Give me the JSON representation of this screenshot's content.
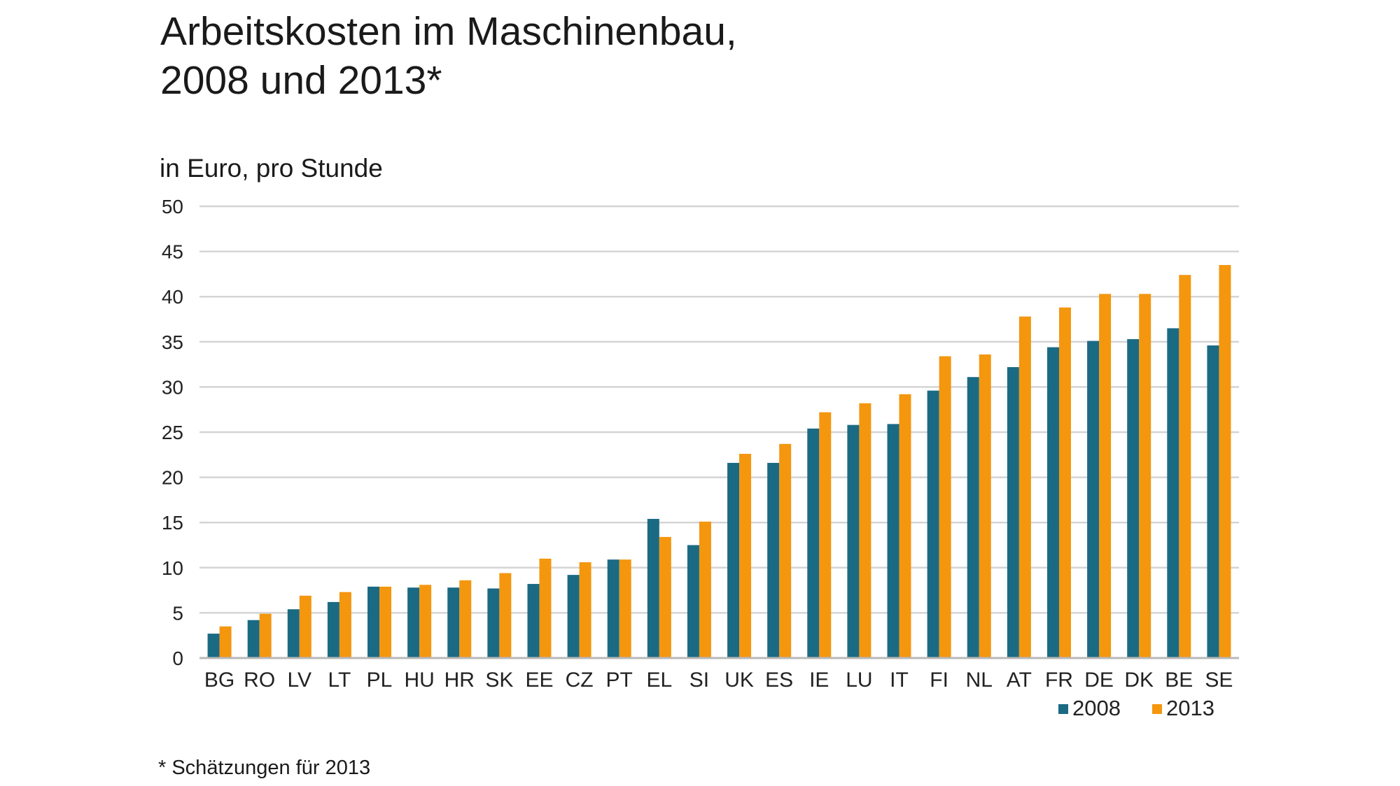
{
  "title_lines": [
    "Arbeitskosten im Maschinenbau,",
    "2008 und 2013*"
  ],
  "unit_label": "in Euro, pro Stunde",
  "footnote": "* Schätzungen für 2013",
  "colors": {
    "s2008": "#1b6a84",
    "s2013": "#f4960e",
    "grid": "#d4d4d4",
    "axis": "#b8b8b8"
  },
  "chart_data": {
    "type": "bar",
    "categories": [
      "BG",
      "RO",
      "LV",
      "LT",
      "PL",
      "HU",
      "HR",
      "SK",
      "EE",
      "CZ",
      "PT",
      "EL",
      "SI",
      "UK",
      "ES",
      "IE",
      "LU",
      "IT",
      "FI",
      "NL",
      "AT",
      "FR",
      "DE",
      "DK",
      "BE",
      "SE"
    ],
    "series": [
      {
        "name": "2008",
        "values": [
          2.7,
          4.2,
          5.4,
          6.2,
          7.9,
          7.8,
          7.8,
          7.7,
          8.2,
          9.2,
          10.9,
          15.4,
          12.5,
          21.6,
          21.6,
          25.4,
          25.8,
          25.9,
          29.6,
          31.1,
          32.2,
          34.4,
          35.1,
          35.3,
          36.5,
          34.6
        ]
      },
      {
        "name": "2013",
        "values": [
          3.5,
          4.9,
          6.9,
          7.3,
          7.9,
          8.1,
          8.6,
          9.4,
          11.0,
          10.6,
          10.9,
          13.4,
          15.1,
          22.6,
          23.7,
          27.2,
          28.2,
          29.2,
          33.4,
          33.6,
          37.8,
          38.8,
          40.3,
          40.3,
          42.4,
          43.5
        ]
      }
    ],
    "ylabel": "in Euro, pro Stunde",
    "ylim": [
      0,
      50
    ],
    "yticks": [
      0,
      5,
      10,
      15,
      20,
      25,
      30,
      35,
      40,
      45,
      50
    ],
    "grid": true,
    "legend_position": "bottom-right"
  }
}
